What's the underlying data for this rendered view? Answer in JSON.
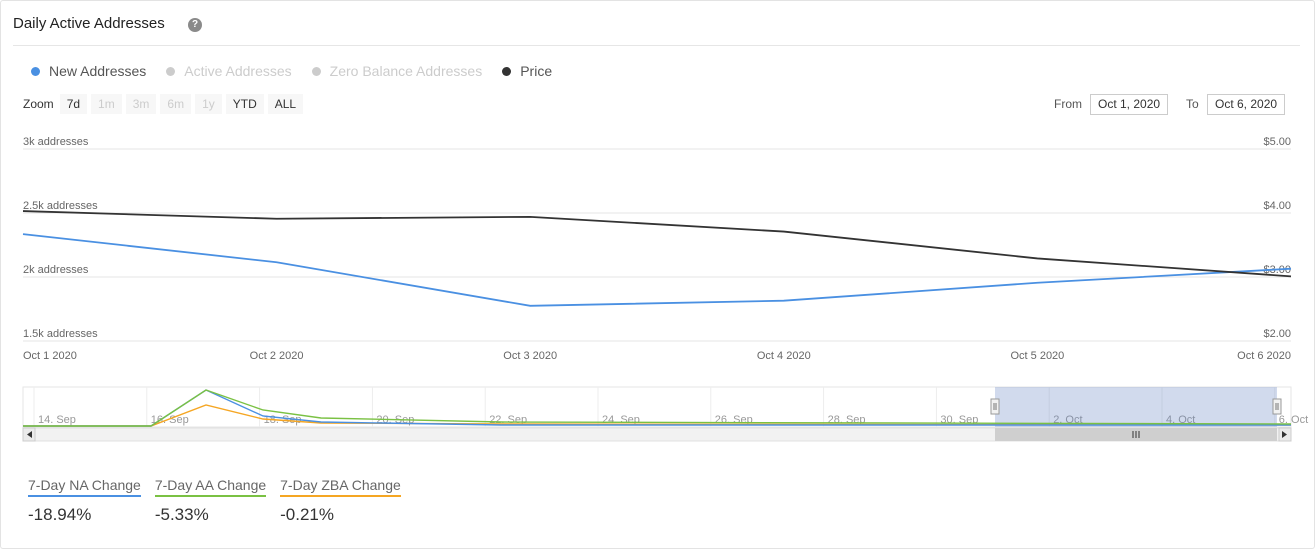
{
  "header": {
    "title": "Daily Active Addresses",
    "help_icon": "?"
  },
  "legend": [
    {
      "label": "New Addresses",
      "color": "#4a90e2",
      "active": true
    },
    {
      "label": "Active Addresses",
      "color": "#cccccc",
      "active": false
    },
    {
      "label": "Zero Balance Addresses",
      "color": "#cccccc",
      "active": false
    },
    {
      "label": "Price",
      "color": "#333333",
      "active": true
    }
  ],
  "zoom": {
    "label": "Zoom",
    "buttons": [
      {
        "label": "7d",
        "enabled": true
      },
      {
        "label": "1m",
        "enabled": false
      },
      {
        "label": "3m",
        "enabled": false
      },
      {
        "label": "6m",
        "enabled": false
      },
      {
        "label": "1y",
        "enabled": false
      },
      {
        "label": "YTD",
        "enabled": true
      },
      {
        "label": "ALL",
        "enabled": true
      }
    ]
  },
  "range": {
    "from_label": "From",
    "from_value": "Oct 1, 2020",
    "to_label": "To",
    "to_value": "Oct 6, 2020"
  },
  "chart_data": {
    "type": "line",
    "x": [
      "Oct 1 2020",
      "Oct 2 2020",
      "Oct 3 2020",
      "Oct 4 2020",
      "Oct 5 2020",
      "Oct 6 2020"
    ],
    "left_axis": {
      "ticks": [
        "3k addresses",
        "2.5k addresses",
        "2k addresses",
        "1.5k addresses"
      ],
      "tick_values": [
        3000,
        2500,
        2000,
        1500
      ],
      "ylim": [
        1500,
        3000
      ]
    },
    "right_axis": {
      "ticks": [
        "$5.00",
        "$4.00",
        "$3.00",
        "$2.00"
      ],
      "tick_values": [
        5,
        4,
        3,
        2
      ],
      "ylim": [
        2,
        5
      ]
    },
    "series": [
      {
        "name": "New Addresses",
        "axis": "left",
        "color": "#4a90e2",
        "values": [
          2335,
          2115,
          1775,
          1815,
          1955,
          2065
        ]
      },
      {
        "name": "Price",
        "axis": "right",
        "color": "#333333",
        "values": [
          4.03,
          3.91,
          3.94,
          3.71,
          3.29,
          3.01
        ]
      }
    ],
    "grid": true
  },
  "navigator": {
    "labels": [
      "14. Sep",
      "16. Sep",
      "18. Sep",
      "20. Sep",
      "22. Sep",
      "24. Sep",
      "26. Sep",
      "28. Sep",
      "30. Sep",
      "2. Oct",
      "4. Oct",
      "6. Oct"
    ]
  },
  "stats": [
    {
      "label": "7-Day NA Change",
      "value": "-18.94%",
      "color": "#4a90e2"
    },
    {
      "label": "7-Day AA Change",
      "value": "-5.33%",
      "color": "#7ac143"
    },
    {
      "label": "7-Day ZBA Change",
      "value": "-0.21%",
      "color": "#f5a623"
    }
  ]
}
